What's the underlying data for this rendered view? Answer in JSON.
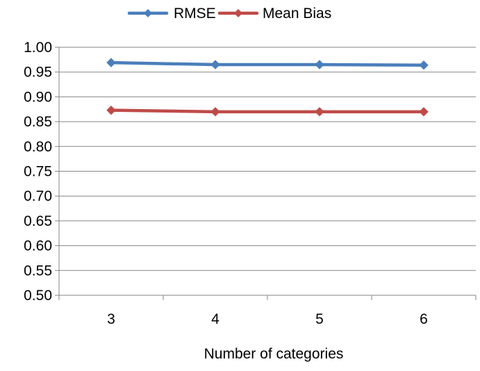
{
  "chart_data": {
    "type": "line",
    "title": "",
    "xlabel": "Number of categories",
    "ylabel": "",
    "categories": [
      "3",
      "4",
      "5",
      "6"
    ],
    "ylim": [
      0.5,
      1.0
    ],
    "ytick_step": 0.05,
    "ytick_labels": [
      "0.50",
      "0.55",
      "0.60",
      "0.65",
      "0.70",
      "0.75",
      "0.80",
      "0.85",
      "0.90",
      "0.95",
      "1.00"
    ],
    "grid": true,
    "legend_position": "top",
    "series": [
      {
        "name": "RMSE",
        "color": "#4a7ebb",
        "marker": "diamond",
        "values": [
          0.969,
          0.965,
          0.965,
          0.964
        ]
      },
      {
        "name": "Mean Bias",
        "color": "#be4b48",
        "marker": "diamond",
        "values": [
          0.873,
          0.87,
          0.87,
          0.87
        ]
      }
    ]
  }
}
